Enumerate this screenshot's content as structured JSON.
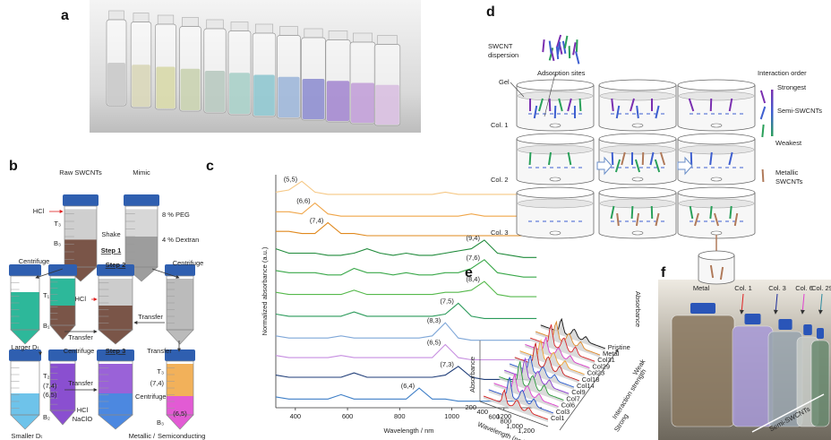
{
  "figure": {
    "panel_labels": [
      "a",
      "b",
      "c",
      "d",
      "e",
      "f"
    ],
    "b": [
      "Raw SWCNTs",
      "Mimic",
      "HCl",
      "T₃",
      "B₃",
      "Shake",
      "8 % PEG",
      "Step 1",
      "4 % Dextran",
      "Centrifuge",
      "Centrifuge",
      "Step 2",
      "T₁",
      "B₁",
      "HCl",
      "Transfer",
      "Transfer",
      "Larger Dₜ",
      "Centrifuge",
      "Step 3",
      "Transfer",
      "T₂",
      "(7,4)",
      "(6,5)",
      "B₂",
      "Transfer",
      "T₃",
      "(7,4)",
      "Centrifuge",
      "B₃",
      "(6,5)",
      "Smaller Dₜ",
      "HCl",
      "NaClO",
      "Metallic",
      "/",
      "Semiconducting"
    ],
    "d": [
      "SWCNT",
      "dispersion",
      "Adsorption sites",
      "Gel",
      "Col. 1",
      "Col. 2",
      "Col. 3",
      "Interaction order",
      "Strongest",
      "Semi-SWCNTs",
      "Weakest",
      "Metallic",
      "SWCNTs"
    ],
    "e": {
      "samples": [
        "Pristine",
        "Metal",
        "Col31",
        "Col29",
        "Col23",
        "Col18",
        "Col14",
        "Col9",
        "Col7",
        "Col6",
        "Col3",
        "Col1"
      ],
      "absorbance_right": "Absorbance",
      "absorbance_left": "Absorbance",
      "interaction_axis": "Interaction strength",
      "strong": "Strong",
      "weak": "Weak",
      "wavelength_ticks": [
        "200",
        "400",
        "600",
        "800",
        "1,000",
        "1,200"
      ],
      "wavelength_label": "Wavelength (nm)"
    },
    "f": {
      "columns": [
        "Metal",
        "Col. 1",
        "Col. 3",
        "Col. 6",
        "Col. 29"
      ],
      "arrow_label": "Semi-SWCNTs"
    }
  },
  "chart_data": {
    "type": "line",
    "xlabel": "Wavelength / nm",
    "ylabel": "Normalized absorbance (a.u.)",
    "x": [
      325,
      375,
      425,
      475,
      525,
      575,
      625,
      675,
      725,
      775,
      825,
      875,
      925,
      975,
      1025,
      1075,
      1125,
      1175,
      1225,
      1275,
      1325
    ],
    "xlim": [
      325,
      1345
    ],
    "xticks": [
      400,
      600,
      800,
      1000,
      1200
    ],
    "ylim": [
      0.5,
      11.2
    ],
    "series": [
      {
        "name": "(5,5)",
        "color": "#f6c885",
        "values": [
          10.4,
          10.5,
          10.9,
          10.4,
          10.3,
          10.3,
          10.3,
          10.3,
          10.3,
          10.3,
          10.3,
          10.3,
          10.3,
          10.4,
          10.3,
          10.3,
          10.3,
          10.3,
          10.3,
          10.3,
          10.3
        ]
      },
      {
        "name": "(6,6)",
        "color": "#f0a64a",
        "values": [
          9.5,
          9.5,
          9.4,
          9.9,
          9.4,
          9.3,
          9.3,
          9.3,
          9.3,
          9.3,
          9.3,
          9.3,
          9.3,
          9.3,
          9.3,
          9.4,
          9.3,
          9.3,
          9.3,
          9.3,
          9.3
        ]
      },
      {
        "name": "(7,4)",
        "color": "#e0891e",
        "values": [
          8.6,
          8.6,
          8.5,
          8.5,
          9.0,
          8.5,
          8.5,
          8.4,
          8.4,
          8.4,
          8.4,
          8.4,
          8.4,
          8.4,
          8.4,
          8.4,
          8.4,
          8.4,
          8.4,
          8.4,
          8.4
        ]
      },
      {
        "name": "(9,4)",
        "color": "#1f8a3a",
        "values": [
          7.8,
          7.6,
          7.6,
          7.6,
          7.5,
          7.5,
          7.6,
          7.8,
          7.6,
          7.5,
          7.6,
          7.5,
          7.5,
          7.6,
          7.7,
          7.8,
          8.2,
          7.6,
          7.5,
          7.4,
          7.4
        ]
      },
      {
        "name": "(7,6)",
        "color": "#3aa84a",
        "values": [
          6.8,
          6.7,
          6.7,
          6.7,
          6.6,
          6.6,
          6.9,
          6.7,
          6.7,
          6.6,
          6.7,
          6.6,
          6.6,
          6.7,
          6.7,
          6.9,
          7.3,
          6.7,
          6.6,
          6.5,
          6.5
        ]
      },
      {
        "name": "(8,4)",
        "color": "#56b94c",
        "values": [
          5.8,
          5.7,
          5.7,
          5.7,
          5.7,
          5.7,
          5.9,
          5.7,
          5.7,
          5.7,
          5.7,
          5.7,
          5.7,
          5.8,
          5.8,
          5.9,
          6.3,
          5.7,
          5.6,
          5.6,
          5.6
        ]
      },
      {
        "name": "(7,5)",
        "color": "#2a9a5a",
        "values": [
          4.8,
          4.7,
          4.7,
          4.7,
          4.7,
          4.7,
          4.9,
          4.7,
          4.7,
          4.7,
          4.7,
          4.7,
          4.7,
          4.8,
          5.3,
          4.7,
          4.6,
          4.6,
          4.6,
          4.6,
          4.6
        ]
      },
      {
        "name": "(8,3)",
        "color": "#7fa7d8",
        "values": [
          3.8,
          3.7,
          3.7,
          3.7,
          3.7,
          3.8,
          3.7,
          3.7,
          3.7,
          3.7,
          3.7,
          3.7,
          3.8,
          4.4,
          3.7,
          3.6,
          3.6,
          3.6,
          3.6,
          3.6,
          3.6
        ]
      },
      {
        "name": "(6,5)",
        "color": "#c68de0",
        "values": [
          2.9,
          2.8,
          2.8,
          2.8,
          2.8,
          2.9,
          2.8,
          2.8,
          2.8,
          2.8,
          2.8,
          2.8,
          2.8,
          3.4,
          2.8,
          2.7,
          2.7,
          2.7,
          2.7,
          2.7,
          2.7
        ]
      },
      {
        "name": "(7,3)",
        "color": "#1f3d78",
        "values": [
          2.0,
          1.9,
          1.9,
          1.9,
          1.9,
          1.9,
          2.1,
          1.9,
          1.9,
          1.9,
          1.9,
          1.9,
          1.9,
          2.0,
          2.4,
          1.9,
          1.8,
          1.8,
          1.8,
          1.8,
          1.8
        ]
      },
      {
        "name": "(6,4)",
        "color": "#3f7fc7",
        "values": [
          1.0,
          0.9,
          0.9,
          0.9,
          0.9,
          1.1,
          0.9,
          0.9,
          0.9,
          0.9,
          0.9,
          1.4,
          0.9,
          0.9,
          0.8,
          0.8,
          0.8,
          0.8,
          0.8,
          0.8,
          0.8
        ]
      }
    ]
  }
}
